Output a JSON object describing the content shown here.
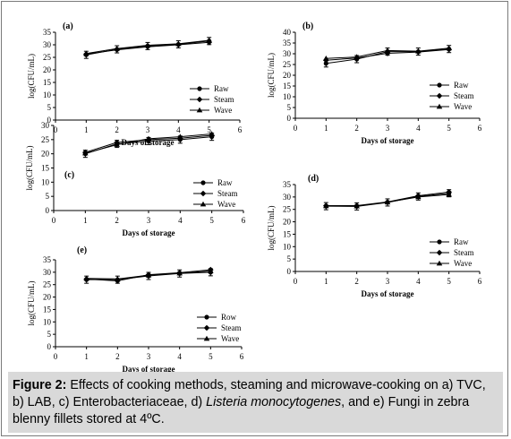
{
  "caption": {
    "label": "Figure 2:",
    "text_1": " Effects of cooking methods, steaming and microwave-cooking on a) TVC, b) LAB, c) Enterobacteriaceae, d) ",
    "italic": "Listeria monocytogenes",
    "text_2": ", and e) Fungi in zebra blenny fillets stored at 4ºC."
  },
  "chart_data": [
    {
      "type": "line",
      "panel": "(a)",
      "xlabel": "Days of storage",
      "ylabel": "log(CFU/mL)",
      "xlim": [
        0,
        6
      ],
      "ylim": [
        0,
        35
      ],
      "x": [
        1,
        2,
        3,
        4,
        5
      ],
      "legend_placement": "bottom-right",
      "series": [
        {
          "name": "Raw",
          "marker": "circle",
          "values": [
            26,
            28.2,
            29.5,
            30.2,
            31.5
          ]
        },
        {
          "name": "Steam",
          "marker": "diamond",
          "values": [
            26.3,
            28,
            29.2,
            30,
            31
          ]
        },
        {
          "name": "Wave",
          "marker": "triangle",
          "values": [
            26.5,
            28.5,
            29.8,
            30.4,
            31.8
          ]
        }
      ]
    },
    {
      "type": "line",
      "panel": "(b)",
      "xlabel": "Days of storage",
      "ylabel": "log(CFU/mL)",
      "xlim": [
        0,
        6
      ],
      "ylim": [
        0,
        40
      ],
      "x": [
        1,
        2,
        3,
        4,
        5
      ],
      "legend_placement": "bottom-right",
      "series": [
        {
          "name": "Raw",
          "marker": "circle",
          "values": [
            25.5,
            27.5,
            31,
            31,
            32.2
          ]
        },
        {
          "name": "Steam",
          "marker": "diamond",
          "values": [
            27,
            28,
            30.2,
            30.8,
            32
          ]
        },
        {
          "name": "Wave",
          "marker": "triangle",
          "values": [
            27.8,
            28.5,
            31.5,
            31.2,
            32.6
          ]
        }
      ]
    },
    {
      "type": "line",
      "panel": "(c)",
      "xlabel": "Days of storage",
      "ylabel": "log(CFU/mL)",
      "xlim": [
        0,
        6
      ],
      "ylim": [
        0,
        30
      ],
      "x": [
        1,
        2,
        3,
        4,
        5
      ],
      "legend_placement": "bottom-right",
      "series": [
        {
          "name": "Raw",
          "marker": "circle",
          "values": [
            20,
            23.5,
            24.5,
            25,
            26
          ]
        },
        {
          "name": "Steam",
          "marker": "diamond",
          "values": [
            20.5,
            24,
            25,
            25.5,
            26.5
          ]
        },
        {
          "name": "Wave",
          "marker": "triangle",
          "values": [
            20.2,
            23.2,
            25.3,
            26,
            27
          ]
        }
      ]
    },
    {
      "type": "line",
      "panel": "(d)",
      "xlabel": "Days of storage",
      "ylabel": "log(CFU/mL)",
      "xlim": [
        0,
        6
      ],
      "ylim": [
        0,
        35
      ],
      "x": [
        1,
        2,
        3,
        4,
        5
      ],
      "legend_placement": "bottom-right",
      "series": [
        {
          "name": "Raw",
          "marker": "circle",
          "values": [
            26.3,
            26.2,
            27.8,
            30.2,
            31.5
          ]
        },
        {
          "name": "Steam",
          "marker": "diamond",
          "values": [
            26.5,
            26.5,
            28,
            30.5,
            32
          ]
        },
        {
          "name": "Wave",
          "marker": "triangle",
          "values": [
            26.4,
            26.3,
            27.9,
            30,
            31
          ]
        }
      ]
    },
    {
      "type": "line",
      "panel": "(e)",
      "xlabel": "Days of storage",
      "ylabel": "log(CFU/mL)",
      "xlim": [
        0,
        6
      ],
      "ylim": [
        0,
        35
      ],
      "x": [
        1,
        2,
        3,
        4,
        5
      ],
      "legend_placement": "bottom-right",
      "series": [
        {
          "name": "Row",
          "marker": "circle",
          "values": [
            27,
            27,
            28.5,
            29.5,
            30
          ]
        },
        {
          "name": "Steam",
          "marker": "diamond",
          "values": [
            27.3,
            26.5,
            29,
            29.8,
            31
          ]
        },
        {
          "name": "Wave",
          "marker": "triangle",
          "values": [
            27.5,
            27.3,
            28.8,
            29.6,
            30.5
          ]
        }
      ]
    }
  ]
}
